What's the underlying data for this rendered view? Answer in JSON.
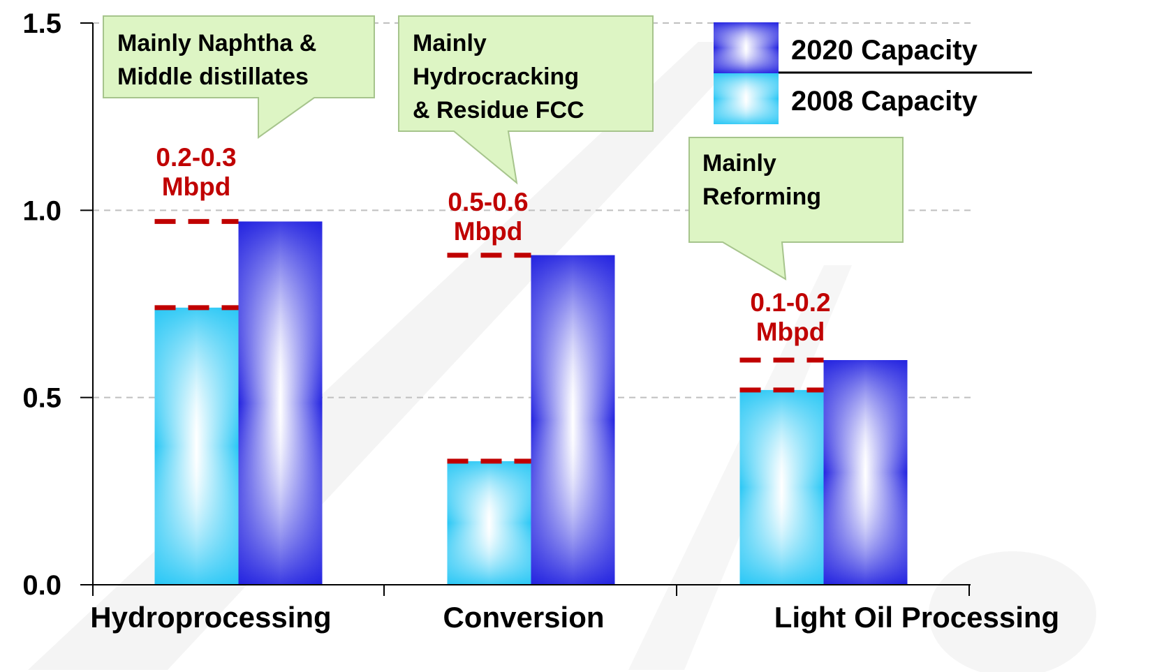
{
  "chart_data": {
    "type": "bar",
    "categories": [
      "Hydroprocessing",
      "Conversion",
      "Light Oil Processing"
    ],
    "series": [
      {
        "name": "2008 Capacity",
        "values": [
          0.74,
          0.33,
          0.52
        ]
      },
      {
        "name": "2020 Capacity",
        "values": [
          0.97,
          0.88,
          0.6
        ]
      }
    ],
    "ylim": [
      0,
      1.5
    ],
    "yticks": [
      0.0,
      0.5,
      1.0,
      1.5
    ],
    "ytick_labels": [
      "0.0",
      "0.5",
      "1.0",
      "1.5"
    ],
    "grid": "horizontal dashed",
    "legend": "top-right",
    "increments": [
      {
        "category": "Hydroprocessing",
        "label_lines": [
          "0.2-0.3",
          "Mbpd"
        ],
        "from": 0.74,
        "to": 0.97
      },
      {
        "category": "Conversion",
        "label_lines": [
          "0.5-0.6",
          "Mbpd"
        ],
        "from": 0.33,
        "to": 0.88
      },
      {
        "category": "Light Oil Processing",
        "label_lines": [
          "0.1-0.2",
          "Mbpd"
        ],
        "from": 0.52,
        "to": 0.6
      }
    ],
    "callouts": [
      {
        "category": "Hydroprocessing",
        "lines": [
          "Mainly Naphtha &",
          "Middle distillates"
        ]
      },
      {
        "category": "Conversion",
        "lines": [
          "Mainly",
          "Hydrocracking",
          "& Residue FCC"
        ]
      },
      {
        "category": "Light Oil Processing",
        "lines": [
          "Mainly",
          "Reforming"
        ]
      }
    ],
    "colors": {
      "series_2008": "#29c7f5",
      "series_2020": "#2323e0",
      "increment_line": "#c00000",
      "callout_fill": "#ddf5c4",
      "callout_border": "#a6c48c",
      "grid": "#bfbfbf"
    }
  }
}
